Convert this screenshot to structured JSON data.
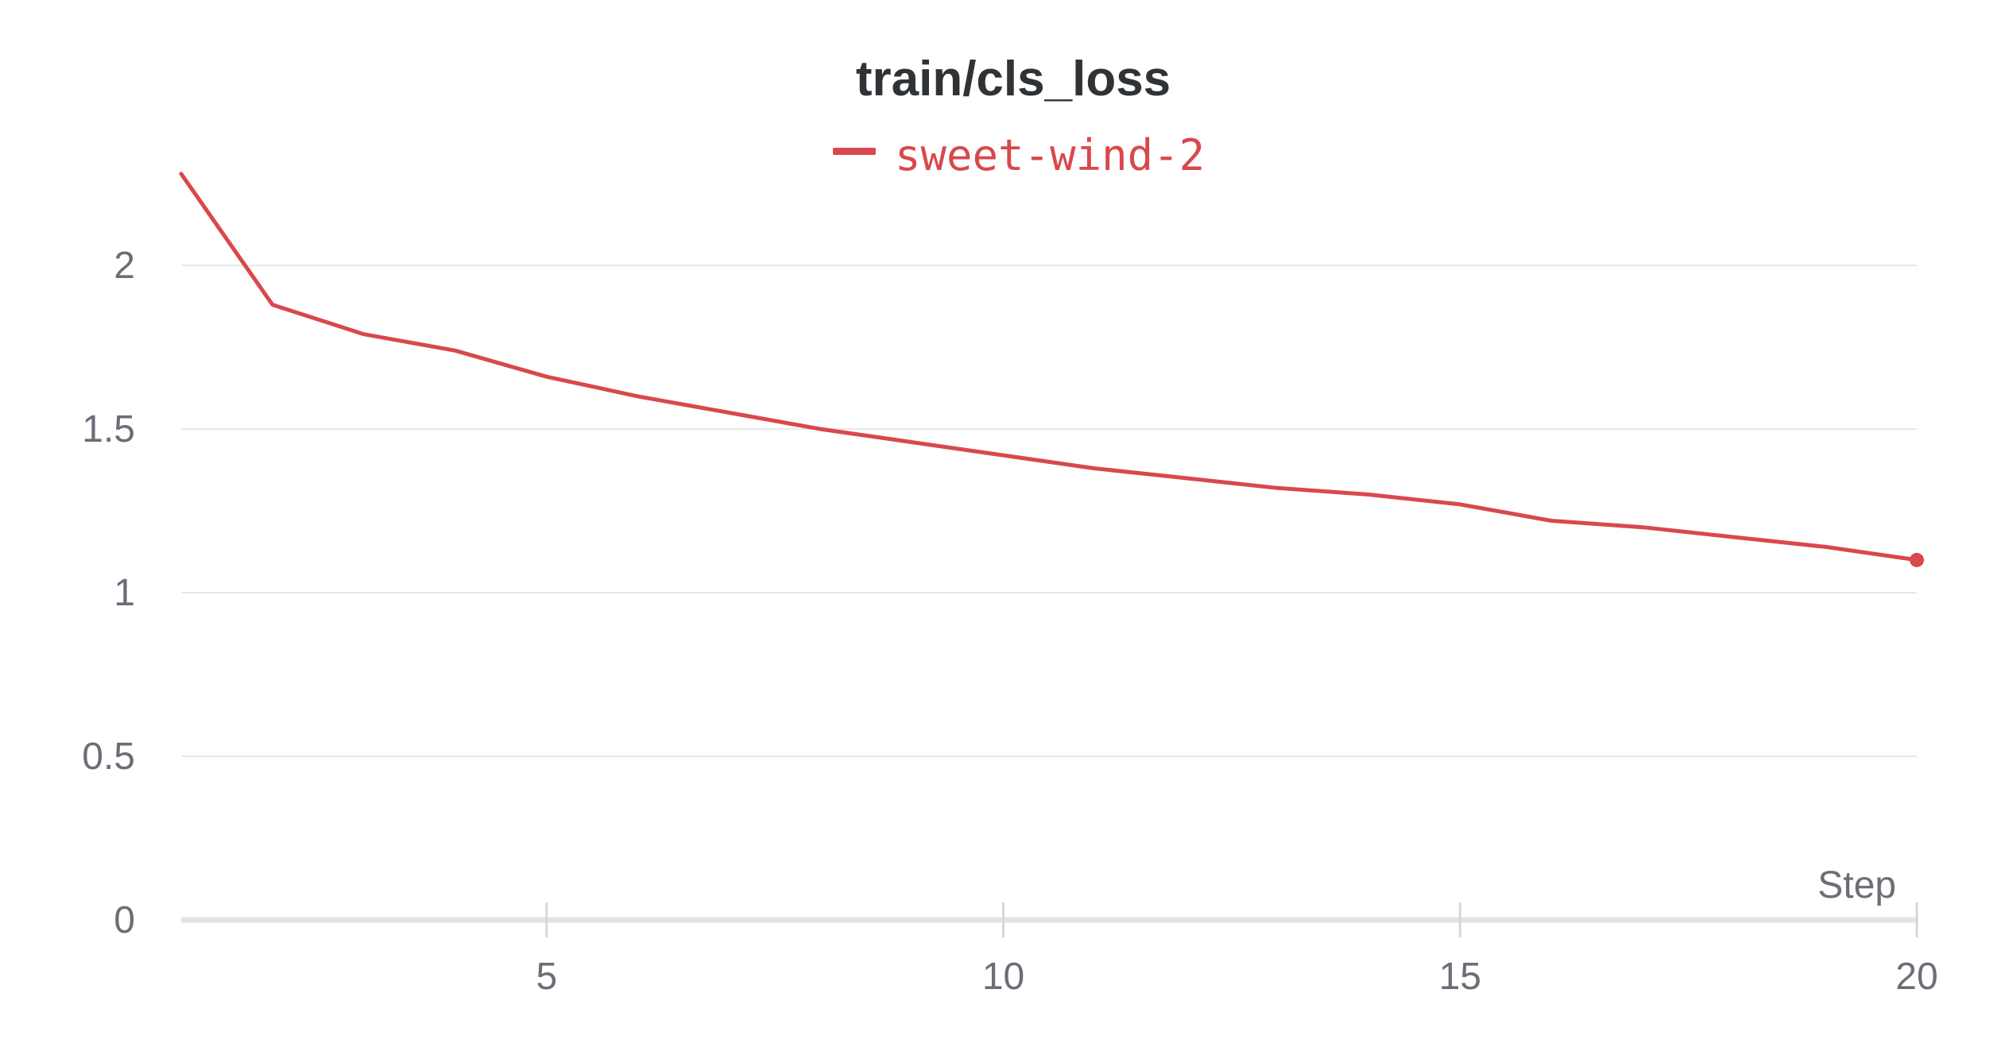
{
  "chart_data": {
    "type": "line",
    "title": "train/cls_loss",
    "xlabel": "Step",
    "ylabel": "",
    "xlim": [
      1,
      20
    ],
    "ylim": [
      0,
      2.35
    ],
    "x_ticks": [
      "5",
      "10",
      "15",
      "20"
    ],
    "y_ticks": [
      "0",
      "0.5",
      "1",
      "1.5",
      "2"
    ],
    "grid": true,
    "legend_position": "top-center",
    "series": [
      {
        "name": "sweet-wind-2",
        "color": "#d9484c",
        "x": [
          1,
          2,
          3,
          4,
          5,
          6,
          7,
          8,
          9,
          10,
          11,
          12,
          13,
          14,
          15,
          16,
          17,
          18,
          19,
          20
        ],
        "y": [
          2.28,
          1.88,
          1.79,
          1.74,
          1.66,
          1.6,
          1.55,
          1.5,
          1.46,
          1.42,
          1.38,
          1.35,
          1.32,
          1.3,
          1.27,
          1.22,
          1.2,
          1.17,
          1.14,
          1.1
        ]
      }
    ]
  }
}
